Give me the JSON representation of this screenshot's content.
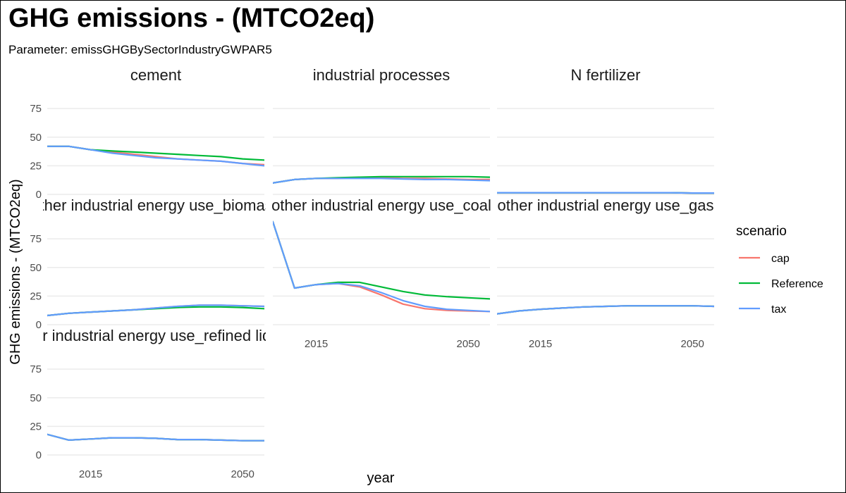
{
  "title": "GHG emissions - (MTCO2eq)",
  "subtitle": "Parameter: emissGHGBySectorIndustryGWPAR5",
  "colors": {
    "cap": "#F8766D",
    "Reference": "#00BA38",
    "tax": "#619CFF",
    "grid": "#ebebeb"
  },
  "chart_data": {
    "type": "line",
    "xlabel": "year",
    "ylabel": "GHG emissions - (MTCO2eq)",
    "xlim": [
      2005,
      2055
    ],
    "ylim": [
      0,
      80
    ],
    "x_ticks": [
      "2015",
      "2050"
    ],
    "y_ticks": [
      "0",
      "25",
      "50",
      "75"
    ],
    "x": [
      2005,
      2010,
      2015,
      2020,
      2025,
      2030,
      2035,
      2040,
      2045,
      2050,
      2055
    ],
    "legend": {
      "title": "scenario",
      "entries": [
        "cap",
        "Reference",
        "tax"
      ],
      "position": "right"
    },
    "panels": [
      {
        "title": "cement",
        "series": [
          {
            "name": "Reference",
            "values": [
              42,
              42,
              39,
              38,
              37,
              36,
              35,
              34,
              33,
              31,
              30
            ]
          },
          {
            "name": "cap",
            "values": [
              42,
              42,
              39,
              37,
              35,
              33,
              31,
              30,
              29,
              27,
              26
            ]
          },
          {
            "name": "tax",
            "values": [
              42,
              42,
              39,
              36,
              34,
              32,
              31,
              30,
              29,
              27,
              25
            ]
          }
        ]
      },
      {
        "title": "industrial processes",
        "series": [
          {
            "name": "Reference",
            "values": [
              10,
              13,
              14,
              14.5,
              15,
              15.5,
              15.5,
              15.5,
              15.5,
              15.5,
              15
            ]
          },
          {
            "name": "cap",
            "values": [
              10,
              13,
              14,
              14,
              14.5,
              14.5,
              14,
              14,
              13.5,
              13,
              13
            ]
          },
          {
            "name": "tax",
            "values": [
              10,
              13,
              14,
              14,
              14,
              14,
              13.5,
              13,
              13,
              12.5,
              12
            ]
          }
        ]
      },
      {
        "title": "N fertilizer",
        "series": [
          {
            "name": "Reference",
            "values": [
              1.5,
              1.5,
              1.5,
              1.5,
              1.5,
              1.5,
              1.5,
              1.5,
              1.5,
              1.2,
              1.2
            ]
          },
          {
            "name": "cap",
            "values": [
              1.5,
              1.5,
              1.5,
              1.5,
              1.5,
              1.5,
              1.5,
              1.5,
              1.5,
              1.2,
              1.2
            ]
          },
          {
            "name": "tax",
            "values": [
              1.5,
              1.5,
              1.5,
              1.5,
              1.5,
              1.5,
              1.5,
              1.5,
              1.5,
              1.2,
              1.2
            ]
          }
        ]
      },
      {
        "title": "other industrial energy use_biomass",
        "series": [
          {
            "name": "Reference",
            "values": [
              8,
              10,
              11,
              12,
              13,
              14,
              15,
              15.5,
              15.5,
              15,
              14
            ]
          },
          {
            "name": "cap",
            "values": [
              8,
              10,
              11,
              12,
              13,
              14.5,
              16,
              17,
              17,
              16.5,
              16
            ]
          },
          {
            "name": "tax",
            "values": [
              8,
              10,
              11,
              12,
              13,
              14.5,
              16,
              17,
              17,
              16.5,
              16
            ]
          }
        ]
      },
      {
        "title": "other industrial energy use_coal",
        "series": [
          {
            "name": "Reference",
            "values": [
              90,
              32,
              35,
              37,
              37,
              33,
              29,
              26,
              24.5,
              23.5,
              22.5
            ]
          },
          {
            "name": "cap",
            "values": [
              90,
              32,
              35,
              36,
              33,
              26,
              18,
              14,
              12.5,
              12,
              11.5
            ]
          },
          {
            "name": "tax",
            "values": [
              90,
              32,
              35,
              36,
              34,
              28,
              21,
              16,
              13.5,
              12.5,
              11.5
            ]
          }
        ]
      },
      {
        "title": "other industrial energy use_gas",
        "series": [
          {
            "name": "Reference",
            "values": [
              9.5,
              12,
              13.5,
              14.5,
              15.5,
              16,
              16.5,
              16.5,
              16.5,
              16.5,
              16
            ]
          },
          {
            "name": "cap",
            "values": [
              9.5,
              12,
              13.5,
              14.5,
              15.5,
              16,
              16.5,
              16.5,
              16.5,
              16.5,
              16
            ]
          },
          {
            "name": "tax",
            "values": [
              9.5,
              12,
              13.5,
              14.5,
              15.5,
              16,
              16.5,
              16.5,
              16.5,
              16.5,
              16
            ]
          }
        ]
      },
      {
        "title": "other industrial energy use_refined liquids",
        "series": [
          {
            "name": "Reference",
            "values": [
              18,
              13,
              14,
              15,
              15,
              14.5,
              13.5,
              13.5,
              13,
              12.5,
              12.5
            ]
          },
          {
            "name": "cap",
            "values": [
              18,
              13,
              14,
              15,
              15,
              14.5,
              13.5,
              13.5,
              13,
              12.5,
              12.5
            ]
          },
          {
            "name": "tax",
            "values": [
              18,
              13,
              14,
              15,
              15,
              14.5,
              13.5,
              13.5,
              13,
              12.5,
              12.5
            ]
          }
        ]
      }
    ]
  }
}
